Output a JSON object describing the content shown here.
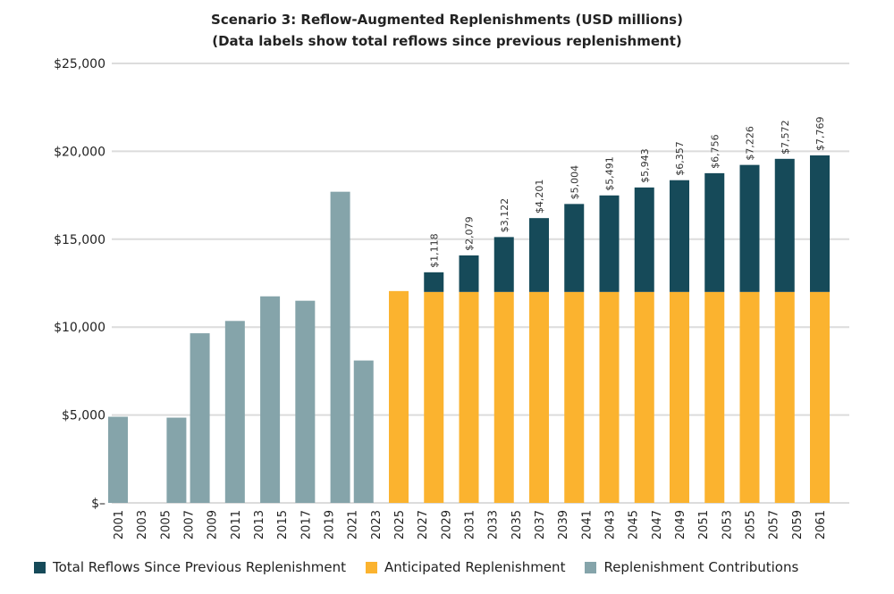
{
  "chart_data": {
    "type": "bar",
    "stacked": true,
    "title": "Scenario 3: Reflow-Augmented Replenishments (USD millions)",
    "subtitle": "(Data labels show total reflows since previous replenishment)",
    "xlabel": "",
    "ylabel": "",
    "ylim": [
      0,
      25000
    ],
    "yticks": [
      0,
      5000,
      10000,
      15000,
      20000,
      25000
    ],
    "ytick_labels": [
      "$–",
      "$5,000",
      "$10,000",
      "$15,000",
      "$20,000",
      "$25,000"
    ],
    "xlim": [
      2001,
      2061
    ],
    "xtick_labels": [
      "2001",
      "2003",
      "2005",
      "2007",
      "2009",
      "2011",
      "2013",
      "2015",
      "2017",
      "2019",
      "2021",
      "2023",
      "2025",
      "2027",
      "2029",
      "2031",
      "2033",
      "2035",
      "2037",
      "2039",
      "2041",
      "2043",
      "2045",
      "2047",
      "2049",
      "2051",
      "2053",
      "2055",
      "2057",
      "2059",
      "2061"
    ],
    "grid": true,
    "legend_position": "bottom",
    "series": [
      {
        "name": "Replenishment Contributions",
        "color": "#85a4aa",
        "points": [
          [
            2001,
            4900
          ],
          [
            2006,
            4850
          ],
          [
            2008,
            9650
          ],
          [
            2011,
            10350
          ],
          [
            2014,
            11750
          ],
          [
            2017,
            11500
          ],
          [
            2020,
            17700
          ],
          [
            2022,
            8100
          ]
        ]
      },
      {
        "name": "Anticipated Replenishment",
        "color": "#fbb32f",
        "points": [
          [
            2025,
            12050
          ],
          [
            2028,
            12000
          ],
          [
            2031,
            12000
          ],
          [
            2034,
            12000
          ],
          [
            2037,
            12000
          ],
          [
            2040,
            12000
          ],
          [
            2043,
            12000
          ],
          [
            2046,
            12000
          ],
          [
            2049,
            12000
          ],
          [
            2052,
            12000
          ],
          [
            2055,
            12000
          ],
          [
            2058,
            12000
          ],
          [
            2061,
            12000
          ]
        ]
      },
      {
        "name": "Total Reflows Since Previous Replenishment",
        "color": "#164a59",
        "points": [
          [
            2028,
            1118
          ],
          [
            2031,
            2079
          ],
          [
            2034,
            3122
          ],
          [
            2037,
            4201
          ],
          [
            2040,
            5004
          ],
          [
            2043,
            5491
          ],
          [
            2046,
            5943
          ],
          [
            2049,
            6357
          ],
          [
            2052,
            6756
          ],
          [
            2055,
            7226
          ],
          [
            2058,
            7572
          ],
          [
            2061,
            7769
          ]
        ],
        "data_labels": [
          "$1,118",
          "$2,079",
          "$3,122",
          "$4,201",
          "$5,004",
          "$5,491",
          "$5,943",
          "$6,357",
          "$6,756",
          "$7,226",
          "$7,572",
          "$7,769"
        ]
      }
    ],
    "legend": [
      "Total Reflows Since Previous Replenishment",
      "Anticipated Replenishment",
      "Replenishment Contributions"
    ]
  }
}
